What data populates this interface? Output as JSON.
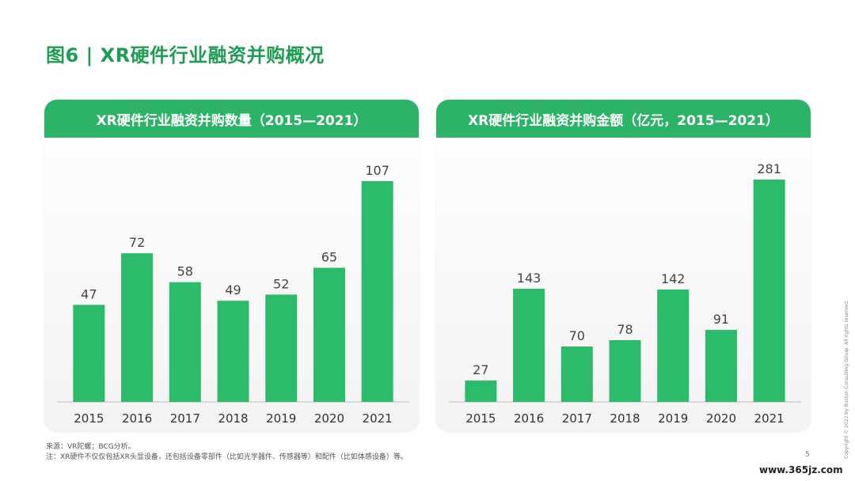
{
  "page": {
    "title": "图6 | XR硬件行业融资并购概况",
    "source_line": "来源：VR陀螺；BCG分析。",
    "note_line": "注：XR硬件不仅仅包括XR头显设备，还包括设备零部件（比如光学器件、传感器等）和配件（比如体感设备）等。",
    "copyright": "Copyright © 2022 by Boston Consulting Group. All rights reserved.",
    "page_number": "5",
    "watermark": "www.365jz.com"
  },
  "colors": {
    "accent": "#2cb367",
    "bar": "#2bbb6a",
    "title": "#1f9d55"
  },
  "chart_data": [
    {
      "type": "bar",
      "title": "XR硬件行业融资并购数量（2015—2021）",
      "categories": [
        "2015",
        "2016",
        "2017",
        "2018",
        "2019",
        "2020",
        "2021"
      ],
      "values": [
        47,
        72,
        58,
        49,
        52,
        65,
        107
      ],
      "ylim": [
        0,
        115
      ],
      "grid": false,
      "data_labels": true
    },
    {
      "type": "bar",
      "title": "XR硬件行业融资并购金额（亿元，2015—2021）",
      "categories": [
        "2015",
        "2016",
        "2017",
        "2018",
        "2019",
        "2020",
        "2021"
      ],
      "values": [
        27,
        143,
        70,
        78,
        142,
        91,
        281
      ],
      "ylim": [
        0,
        300
      ],
      "grid": false,
      "data_labels": true
    }
  ]
}
